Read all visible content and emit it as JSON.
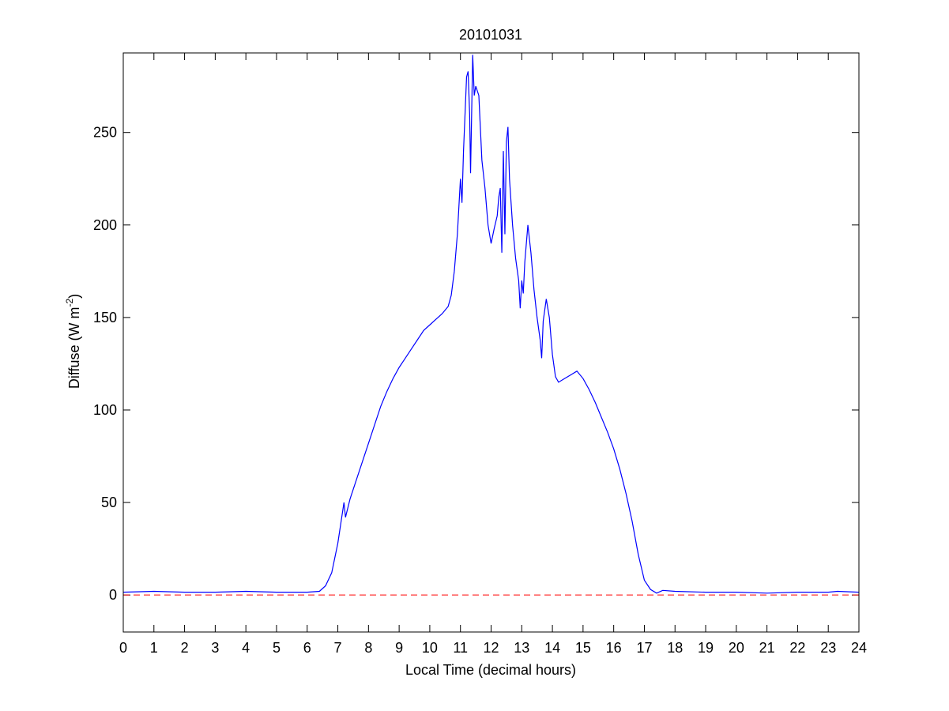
{
  "chart_data": {
    "type": "line",
    "title": "20101031",
    "xlabel": "Local Time (decimal hours)",
    "ylabel": [
      "Diffuse (W m",
      "-2",
      ")"
    ],
    "xlim": [
      0,
      24
    ],
    "ylim": [
      -20,
      293
    ],
    "xticks": [
      0,
      1,
      2,
      3,
      4,
      5,
      6,
      7,
      8,
      9,
      10,
      11,
      12,
      13,
      14,
      15,
      16,
      17,
      18,
      19,
      20,
      21,
      22,
      23,
      24
    ],
    "yticks": [
      0,
      50,
      100,
      150,
      200,
      250
    ],
    "hline": {
      "value": 0,
      "color": "#ff0000"
    },
    "series": [
      {
        "color": "#0000ff",
        "x": [
          0,
          1,
          2,
          3,
          4,
          5,
          6,
          6.4,
          6.6,
          6.8,
          7.0,
          7.2,
          7.25,
          7.4,
          7.6,
          7.8,
          8.0,
          8.2,
          8.4,
          8.6,
          8.8,
          9.0,
          9.2,
          9.4,
          9.6,
          9.8,
          10.0,
          10.2,
          10.4,
          10.6,
          10.7,
          10.8,
          10.9,
          10.95,
          11.0,
          11.05,
          11.1,
          11.2,
          11.25,
          11.3,
          11.33,
          11.4,
          11.45,
          11.5,
          11.6,
          11.7,
          11.8,
          11.9,
          12.0,
          12.1,
          12.2,
          12.25,
          12.3,
          12.35,
          12.4,
          12.45,
          12.5,
          12.55,
          12.6,
          12.7,
          12.8,
          12.9,
          12.95,
          13.0,
          13.05,
          13.1,
          13.2,
          13.3,
          13.4,
          13.5,
          13.6,
          13.65,
          13.7,
          13.8,
          13.9,
          14.0,
          14.1,
          14.2,
          14.4,
          14.6,
          14.8,
          15.0,
          15.2,
          15.4,
          15.6,
          15.8,
          16.0,
          16.2,
          16.4,
          16.6,
          16.8,
          17.0,
          17.2,
          17.4,
          17.6,
          18,
          19,
          20,
          21,
          22,
          23,
          23.3,
          24
        ],
        "values": [
          1.5,
          2,
          1.5,
          1.5,
          2,
          1.5,
          1.5,
          2,
          5,
          12,
          28,
          50,
          42,
          52,
          62,
          72,
          82,
          92,
          102,
          110,
          117,
          123,
          128,
          133,
          138,
          143,
          146,
          149,
          152,
          156,
          162,
          175,
          195,
          210,
          225,
          212,
          240,
          280,
          283,
          260,
          228,
          292,
          270,
          275,
          270,
          235,
          220,
          200,
          190,
          198,
          205,
          215,
          220,
          185,
          240,
          195,
          245,
          253,
          225,
          200,
          182,
          170,
          155,
          170,
          163,
          180,
          200,
          185,
          165,
          150,
          138,
          128,
          148,
          160,
          150,
          130,
          118,
          115,
          117,
          119,
          121,
          117,
          111,
          104,
          96,
          88,
          79,
          68,
          55,
          40,
          22,
          8,
          3,
          1,
          2.5,
          2,
          1.5,
          1.5,
          1,
          1.5,
          1.5,
          2,
          1.5
        ]
      }
    ]
  }
}
